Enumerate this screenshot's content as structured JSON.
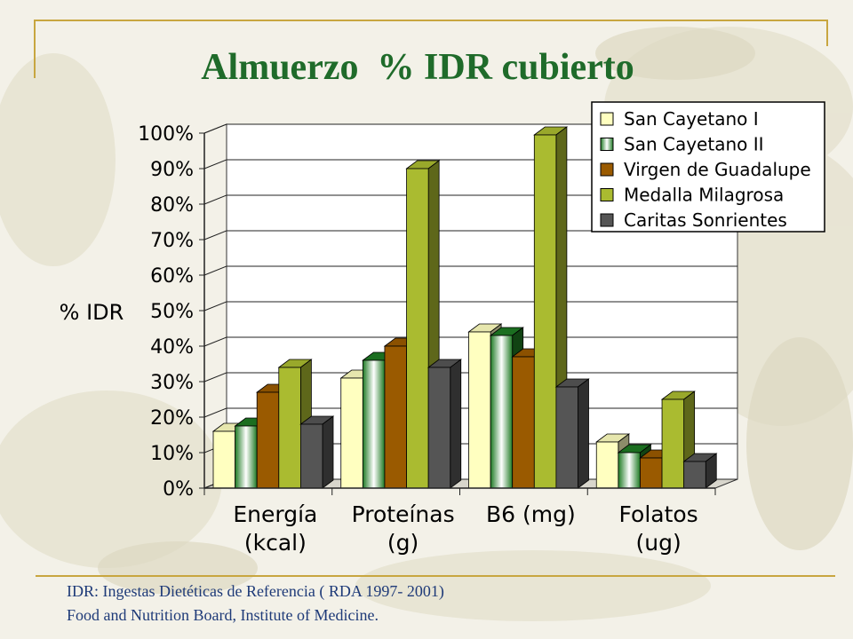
{
  "slide": {
    "title": "Almuerzo  % IDR cubierto",
    "footnote_line1": "IDR: Ingestas Dietéticas de Referencia ( RDA 1997- 2001)",
    "footnote_line2": "Food and Nutrition Board, Institute of  Medicine."
  },
  "colors": {
    "title": "#1f6b2a",
    "accent_line": "#c8a640",
    "footnote": "#1e3a78"
  },
  "chart_data": {
    "type": "bar",
    "ylabel": "% IDR",
    "ylim": [
      0,
      100
    ],
    "yticks": [
      "0%",
      "10%",
      "20%",
      "30%",
      "40%",
      "50%",
      "60%",
      "70%",
      "80%",
      "90%",
      "100%"
    ],
    "grid": true,
    "legend_position": "top-right",
    "categories": [
      [
        "Energía",
        "(kcal)"
      ],
      [
        "Proteínas",
        "(g)"
      ],
      [
        "B6 (mg)",
        ""
      ],
      [
        "Folatos",
        "(ug)"
      ]
    ],
    "series": [
      {
        "name": "San Cayetano I",
        "values": [
          16,
          31,
          44,
          13
        ],
        "color": "#ffffc0",
        "style": "plain"
      },
      {
        "name": "San Cayetano II",
        "values": [
          17.5,
          36,
          43,
          10
        ],
        "color": "#1e7a23",
        "style": "gradient"
      },
      {
        "name": "Virgen de Guadalupe",
        "values": [
          27,
          40,
          37,
          8.5
        ],
        "color": "#9a5a00",
        "style": "plain"
      },
      {
        "name": "Medalla Milagrosa",
        "values": [
          34,
          90,
          99.5,
          25
        ],
        "color": "#aabb30",
        "style": "plain"
      },
      {
        "name": "Caritas Sonrientes",
        "values": [
          18,
          34,
          28.5,
          7.5
        ],
        "color": "#555555",
        "style": "plain"
      }
    ]
  }
}
